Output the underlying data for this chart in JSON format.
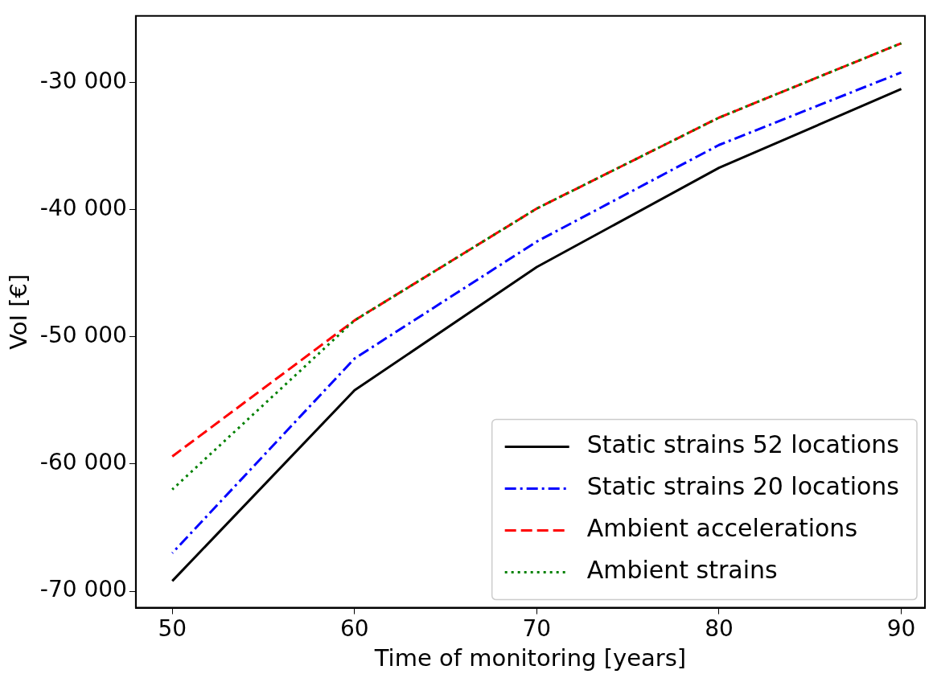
{
  "chart_data": {
    "type": "line",
    "xlabel": "Time of monitoring [years]",
    "ylabel": "VoI [€]",
    "x": [
      50,
      60,
      70,
      80,
      90
    ],
    "xlim": [
      48,
      91.3
    ],
    "xticks": [
      50,
      60,
      70,
      80,
      90
    ],
    "ylim": [
      -71300,
      -24750
    ],
    "yticks": [
      {
        "value": -70000,
        "label": "-70 000"
      },
      {
        "value": -60000,
        "label": "-60 000"
      },
      {
        "value": -50000,
        "label": "-50 000"
      },
      {
        "value": -40000,
        "label": "-40 000"
      },
      {
        "value": -30000,
        "label": "-30 000"
      }
    ],
    "grid": false,
    "legend": "bottom right",
    "marker": "none",
    "series": [
      {
        "name": "Static strains 52 locations",
        "color": "#000000",
        "line_style": "solid",
        "values": [
          -69200,
          -54200,
          -44500,
          -36700,
          -30500
        ]
      },
      {
        "name": "Static strains 20 locations",
        "color": "#0000ff",
        "line_style": "dashdot",
        "values": [
          -67000,
          -51700,
          -42500,
          -34900,
          -29200
        ]
      },
      {
        "name": "Ambient accelerations",
        "color": "#ff0000",
        "line_style": "dashed",
        "values": [
          -59400,
          -48700,
          -39900,
          -32750,
          -26900
        ]
      },
      {
        "name": "Ambient strains",
        "color": "#008000",
        "line_style": "dotted",
        "values": [
          -62000,
          -48700,
          -39900,
          -32750,
          -26900
        ]
      }
    ]
  }
}
